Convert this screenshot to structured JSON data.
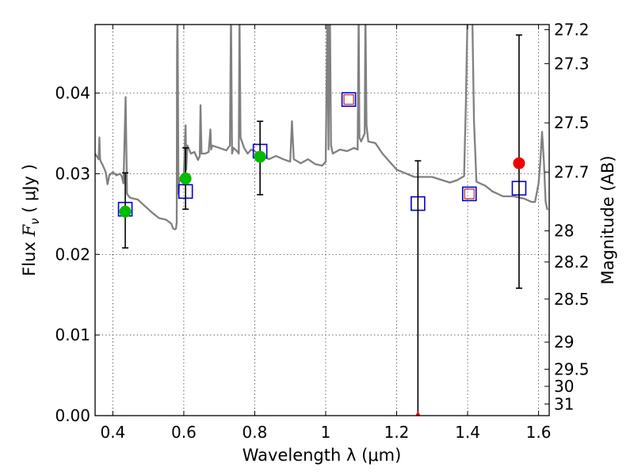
{
  "chart_data": {
    "type": "scatter",
    "xlabel": "Wavelength  λ (μm)",
    "ylabel_parts": [
      "Flux  ",
      "F",
      "ν",
      "  ( μJy )"
    ],
    "y2label": "Magnitude (AB)",
    "xlim": [
      0.35,
      1.63
    ],
    "ylim": [
      0.0,
      0.0485
    ],
    "xticks": [
      0.4,
      0.6,
      0.8,
      1.0,
      1.2,
      1.4,
      1.6
    ],
    "xtick_labels": [
      "0.4",
      "0.6",
      "0.8",
      "1",
      "1.2",
      "1.4",
      "1.6"
    ],
    "yticks": [
      0.0,
      0.01,
      0.02,
      0.03,
      0.04
    ],
    "ytick_labels": [
      "0.00",
      "0.01",
      "0.02",
      "0.03",
      "0.04"
    ],
    "mag_ticks": [
      27.2,
      27.3,
      27.5,
      27.7,
      28,
      28.2,
      28.5,
      29,
      29.5,
      30,
      31
    ],
    "mag_tick_labels": [
      "27.2",
      "27.3",
      "27.5",
      "27.7",
      "28",
      "28.2",
      "28.5",
      "29",
      "29.5",
      "30",
      "31"
    ],
    "grid": true,
    "colors": {
      "sed": "#808080",
      "model": "#0000cc",
      "detection": "#00bb00",
      "limit": "#ee0000",
      "inner_square": "#cc2222",
      "errorbar": "#000000"
    },
    "model_sed": {
      "name": "",
      "x": [
        0.35,
        0.36,
        0.362,
        0.364,
        0.366,
        0.37,
        0.38,
        0.385,
        0.39,
        0.4,
        0.41,
        0.42,
        0.425,
        0.43,
        0.436,
        0.44,
        0.445,
        0.45,
        0.47,
        0.49,
        0.51,
        0.53,
        0.55,
        0.565,
        0.57,
        0.575,
        0.578,
        0.58,
        0.581,
        0.582,
        0.583,
        0.585,
        0.587,
        0.59,
        0.6,
        0.605,
        0.607,
        0.61,
        0.62,
        0.63,
        0.64,
        0.645,
        0.647,
        0.65,
        0.66,
        0.67,
        0.675,
        0.677,
        0.68,
        0.7,
        0.72,
        0.73,
        0.733,
        0.736,
        0.74,
        0.75,
        0.755,
        0.757,
        0.76,
        0.77,
        0.78,
        0.79,
        0.8,
        0.82,
        0.84,
        0.86,
        0.88,
        0.9,
        0.905,
        0.91,
        0.93,
        0.95,
        0.97,
        0.99,
        1.0,
        1.005,
        1.008,
        1.01,
        1.012,
        1.015,
        1.02,
        1.04,
        1.06,
        1.08,
        1.09,
        1.093,
        1.095,
        1.1,
        1.11,
        1.112,
        1.115,
        1.12,
        1.14,
        1.16,
        1.18,
        1.2,
        1.25,
        1.3,
        1.35,
        1.37,
        1.39,
        1.395,
        1.4,
        1.405,
        1.41,
        1.413,
        1.418,
        1.425,
        1.45,
        1.47,
        1.5,
        1.53,
        1.56,
        1.58,
        1.59,
        1.6,
        1.605,
        1.61,
        1.615,
        1.62,
        1.625
      ],
      "y": [
        0.0325,
        0.0318,
        0.0345,
        0.0318,
        0.0315,
        0.0312,
        0.0302,
        0.0287,
        0.0298,
        0.0302,
        0.0298,
        0.03,
        0.0297,
        0.0288,
        0.0395,
        0.0275,
        0.0272,
        0.027,
        0.0268,
        0.026,
        0.0252,
        0.0245,
        0.0243,
        0.0238,
        0.0232,
        0.0231,
        0.0232,
        0.024,
        0.045,
        0.05,
        0.045,
        0.0275,
        0.029,
        0.0295,
        0.0298,
        0.036,
        0.0305,
        0.0335,
        0.0325,
        0.0327,
        0.0317,
        0.0322,
        0.0385,
        0.0325,
        0.0325,
        0.0327,
        0.0355,
        0.033,
        0.0335,
        0.0332,
        0.0329,
        0.0335,
        0.05,
        0.0325,
        0.0332,
        0.0328,
        0.0325,
        0.05,
        0.0345,
        0.0332,
        0.0325,
        0.033,
        0.0328,
        0.0322,
        0.0318,
        0.0322,
        0.0318,
        0.0315,
        0.0365,
        0.0318,
        0.0313,
        0.0318,
        0.0312,
        0.031,
        0.0315,
        0.05,
        0.033,
        0.05,
        0.05,
        0.0335,
        0.0325,
        0.033,
        0.0328,
        0.0332,
        0.033,
        0.05,
        0.0345,
        0.034,
        0.035,
        0.05,
        0.036,
        0.034,
        0.0338,
        0.0325,
        0.0315,
        0.0305,
        0.0296,
        0.0296,
        0.0289,
        0.0292,
        0.0297,
        0.0385,
        0.05,
        0.05,
        0.05,
        0.05,
        0.0365,
        0.029,
        0.0285,
        0.0278,
        0.0272,
        0.0272,
        0.0269,
        0.0265,
        0.0265,
        0.0288,
        0.0315,
        0.0352,
        0.0315,
        0.0265,
        0.0255
      ]
    },
    "observations": [
      {
        "x": 0.435,
        "y": 0.0253,
        "err_low": 0.0045,
        "err_high": 0.0048,
        "marker": "green-circle",
        "model_y": 0.0256
      },
      {
        "x": 0.605,
        "y": 0.0294,
        "err_low": 0.0038,
        "err_high": 0.0038,
        "marker": "green-circle",
        "model_y": 0.0278
      },
      {
        "x": 0.815,
        "y": 0.0321,
        "err_low": 0.0047,
        "err_high": 0.0044,
        "marker": "green-circle",
        "model_y": 0.0328
      },
      {
        "x": 1.065,
        "y": null,
        "marker": "square-with-inner",
        "model_y": 0.0392
      },
      {
        "x": 1.26,
        "y": 0.0,
        "err_low": 0.0,
        "err_high": 0.0316,
        "marker": "red-triangle",
        "model_y": 0.0263
      },
      {
        "x": 1.405,
        "y": null,
        "marker": "square-with-inner",
        "model_y": 0.0275
      },
      {
        "x": 1.545,
        "y": 0.0313,
        "err_low": 0.0155,
        "err_high": 0.0159,
        "marker": "red-circle",
        "model_y": 0.0282
      }
    ]
  }
}
